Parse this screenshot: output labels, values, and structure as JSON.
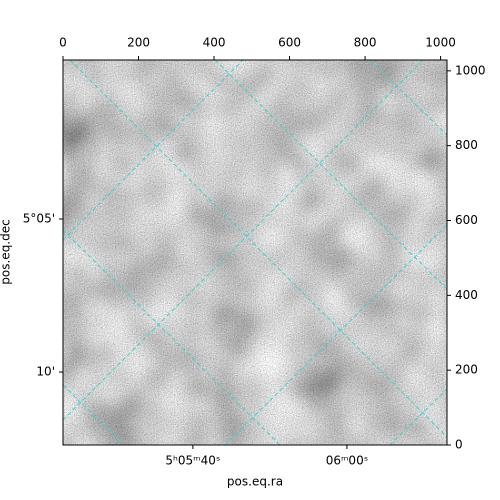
{
  "chart_data": {
    "type": "image",
    "xlabel": "pos.eq.ra",
    "ylabel": "pos.eq.dec",
    "xlim": [
      0,
      1017
    ],
    "ylim": [
      0,
      1029
    ],
    "xticks": [
      0,
      200,
      400,
      600,
      800,
      1000
    ],
    "yticks": [
      0,
      200,
      400,
      600,
      800,
      1000
    ],
    "ra_ticks": [
      {
        "value": 344,
        "label": "5ʰ05ᵐ40ˢ"
      },
      {
        "value": 752,
        "label": "06ᵐ00ˢ"
      }
    ],
    "dec_ticks": [
      {
        "value": 604,
        "label": "5°05'"
      },
      {
        "value": 195,
        "label": "10'"
      }
    ],
    "grid_color": "#3fd0d0"
  }
}
